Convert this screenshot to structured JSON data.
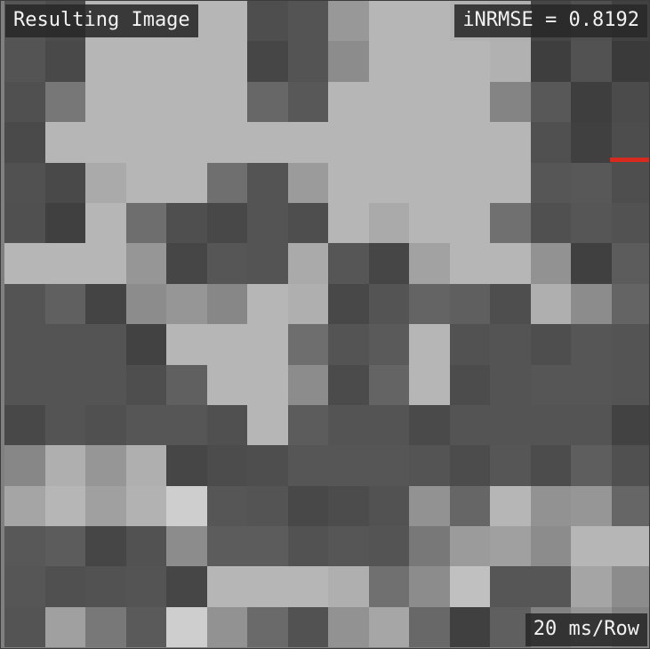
{
  "overlay": {
    "title": "Resulting Image",
    "metric": "iNRMSE = 0.8192",
    "rate": "20 ms/Row"
  },
  "colors": {
    "row_marker": "#d82a1e",
    "label_bg": "#282828",
    "label_text": "#f2f2f2"
  },
  "image": {
    "rows": 16,
    "cols": 16,
    "current_row": 3,
    "pixels": [
      [
        85,
        77,
        182,
        182,
        182,
        182,
        78,
        84,
        152,
        182,
        182,
        177,
        175,
        70,
        80,
        65
      ],
      [
        84,
        73,
        182,
        182,
        182,
        182,
        70,
        84,
        140,
        182,
        182,
        182,
        177,
        62,
        82,
        58
      ],
      [
        80,
        119,
        182,
        182,
        182,
        182,
        103,
        88,
        182,
        182,
        182,
        182,
        132,
        88,
        62,
        75
      ],
      [
        74,
        182,
        182,
        182,
        182,
        182,
        182,
        182,
        182,
        182,
        182,
        182,
        182,
        80,
        64,
        77
      ],
      [
        81,
        73,
        170,
        182,
        182,
        111,
        84,
        155,
        182,
        182,
        182,
        182,
        182,
        86,
        88,
        78
      ],
      [
        80,
        64,
        182,
        110,
        79,
        72,
        84,
        78,
        182,
        170,
        182,
        182,
        112,
        80,
        86,
        82
      ],
      [
        182,
        182,
        182,
        150,
        70,
        86,
        84,
        170,
        86,
        70,
        162,
        182,
        182,
        146,
        64,
        92
      ],
      [
        84,
        96,
        68,
        140,
        150,
        135,
        182,
        175,
        72,
        84,
        100,
        95,
        78,
        175,
        140,
        100
      ],
      [
        84,
        84,
        84,
        66,
        182,
        182,
        182,
        110,
        84,
        90,
        182,
        82,
        84,
        78,
        86,
        84
      ],
      [
        84,
        84,
        84,
        78,
        96,
        182,
        182,
        140,
        75,
        100,
        182,
        76,
        84,
        86,
        86,
        84
      ],
      [
        72,
        84,
        80,
        86,
        86,
        80,
        182,
        92,
        84,
        84,
        74,
        84,
        84,
        84,
        84,
        66
      ],
      [
        135,
        175,
        150,
        175,
        70,
        76,
        78,
        86,
        86,
        86,
        84,
        76,
        86,
        76,
        94,
        80
      ],
      [
        165,
        182,
        160,
        178,
        206,
        86,
        84,
        72,
        76,
        82,
        146,
        102,
        182,
        146,
        150,
        102
      ],
      [
        88,
        92,
        70,
        82,
        140,
        92,
        92,
        82,
        86,
        84,
        120,
        155,
        160,
        140,
        182,
        182
      ],
      [
        86,
        80,
        82,
        84,
        70,
        182,
        182,
        182,
        175,
        112,
        140,
        192,
        86,
        86,
        165,
        140
      ],
      [
        84,
        160,
        120,
        90,
        206,
        146,
        106,
        82,
        146,
        166,
        104,
        64,
        95,
        130,
        150,
        130
      ]
    ]
  }
}
